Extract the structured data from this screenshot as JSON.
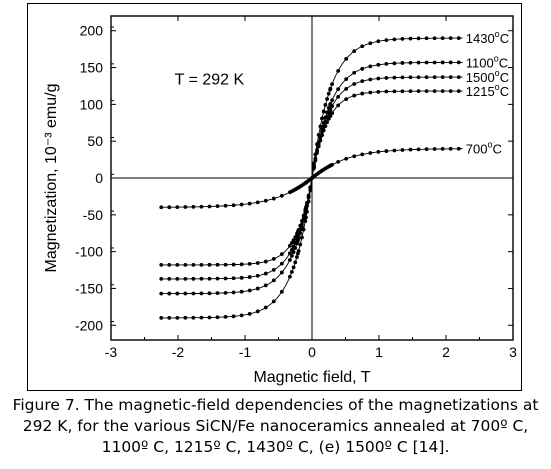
{
  "chart_data": {
    "type": "scatter",
    "title": "",
    "annotation": "T = 292 K",
    "xlabel": "Magnetic field, T",
    "ylabel": "Magnetization, 10⁻³ emu/g",
    "xlim": [
      -3,
      3
    ],
    "ylim": [
      -220,
      220
    ],
    "x_ticks": [
      -3,
      -2,
      -1,
      0,
      1,
      2,
      3
    ],
    "y_ticks": [
      -200,
      -150,
      -100,
      -50,
      0,
      50,
      100,
      150,
      200
    ],
    "series": [
      {
        "name": "1430°C",
        "label": "1430",
        "ms": 190,
        "k": 18,
        "a": 0.58,
        "xmin": -2.25,
        "xmax": 2.25
      },
      {
        "name": "1100°C",
        "label": "1100",
        "ms": 157,
        "k": 18,
        "a": 0.55,
        "xmin": -2.25,
        "xmax": 2.25
      },
      {
        "name": "1500°C",
        "label": "1500",
        "ms": 137,
        "k": 20,
        "a": 0.5,
        "xmin": -2.25,
        "xmax": 2.25
      },
      {
        "name": "1215°C",
        "label": "1215",
        "ms": 118,
        "k": 22,
        "a": 0.45,
        "xmin": -2.25,
        "xmax": 2.25
      },
      {
        "name": "700°C",
        "label": "700",
        "ms": 40,
        "k": 9,
        "a": 0.5,
        "xmin": -2.25,
        "xmax": 2.25
      }
    ],
    "grid": false
  },
  "caption": {
    "line1": "Figure 7. The magnetic-field dependencies of the magnetizations at",
    "line2": "292 K, for the various SiCN/Fe nanoceramics annealed at 700º C,",
    "line3": "1100º C, 1215º C, 1430º C, (e) 1500º C [14]."
  }
}
